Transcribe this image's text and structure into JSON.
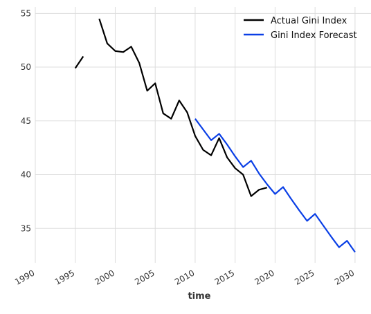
{
  "chart_data": {
    "type": "line",
    "xlabel": "time",
    "ylabel": "",
    "xlim": [
      1990,
      2032
    ],
    "ylim": [
      31.8,
      55.6
    ],
    "xticks": [
      1990,
      1995,
      2000,
      2005,
      2010,
      2015,
      2020,
      2025,
      2030
    ],
    "yticks": [
      35,
      40,
      45,
      50,
      55
    ],
    "grid": true,
    "legend_position": "top-right",
    "series": [
      {
        "name": "Actual Gini Index",
        "color": "#000000",
        "segments": [
          [
            [
              1995,
              49.9
            ],
            [
              1996,
              51.0
            ]
          ],
          [
            [
              1998,
              54.5
            ],
            [
              1999,
              52.2
            ],
            [
              2000,
              51.5
            ],
            [
              2001,
              51.4
            ],
            [
              2002,
              51.9
            ],
            [
              2003,
              50.4
            ],
            [
              2004,
              47.8
            ],
            [
              2005,
              48.5
            ],
            [
              2006,
              45.7
            ],
            [
              2007,
              45.2
            ],
            [
              2008,
              46.9
            ],
            [
              2009,
              45.8
            ],
            [
              2010,
              43.6
            ],
            [
              2011,
              42.3
            ],
            [
              2012,
              41.8
            ],
            [
              2013,
              43.4
            ],
            [
              2014,
              41.6
            ],
            [
              2015,
              40.6
            ],
            [
              2016,
              40.0
            ],
            [
              2017,
              38.0
            ],
            [
              2018,
              38.6
            ],
            [
              2019,
              38.8
            ]
          ]
        ]
      },
      {
        "name": "Gini Index Forecast",
        "color": "#0a3fe6",
        "segments": [
          [
            [
              2010,
              45.2
            ],
            [
              2011,
              44.2
            ],
            [
              2012,
              43.2
            ],
            [
              2013,
              43.8
            ],
            [
              2014,
              42.8
            ],
            [
              2015,
              41.7
            ],
            [
              2016,
              40.7
            ],
            [
              2017,
              41.3
            ],
            [
              2018,
              40.1
            ],
            [
              2019,
              39.1
            ],
            [
              2020,
              38.2
            ],
            [
              2021,
              38.85
            ],
            [
              2022,
              37.75
            ],
            [
              2023,
              36.7
            ],
            [
              2024,
              35.7
            ],
            [
              2025,
              36.35
            ],
            [
              2026,
              35.3
            ],
            [
              2027,
              34.25
            ],
            [
              2028,
              33.25
            ],
            [
              2029,
              33.85
            ],
            [
              2030,
              32.8
            ]
          ]
        ]
      }
    ]
  }
}
